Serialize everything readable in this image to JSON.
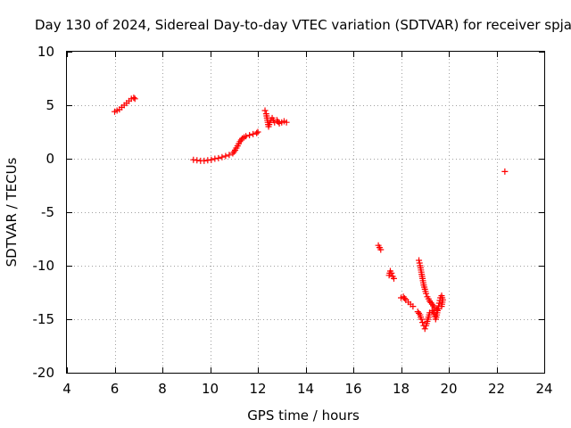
{
  "chart_data": {
    "type": "scatter",
    "title": "Day 130 of 2024, Sidereal Day-to-day VTEC variation (SDTVAR) for receiver spja",
    "xlabel": "GPS time / hours",
    "ylabel": "SDTVAR / TECUs",
    "xlim": [
      4,
      24
    ],
    "ylim": [
      -20,
      10
    ],
    "xticks": [
      4,
      6,
      8,
      10,
      12,
      14,
      16,
      18,
      20,
      22,
      24
    ],
    "yticks": [
      10,
      5,
      0,
      -5,
      -10,
      -15,
      -20
    ],
    "grid": true,
    "marker": "+",
    "color": "#ff0000",
    "series": [
      {
        "name": "SDTVAR",
        "segments": [
          [
            [
              6.0,
              4.4
            ],
            [
              6.1,
              4.5
            ],
            [
              6.2,
              4.6
            ],
            [
              6.3,
              4.8
            ],
            [
              6.4,
              5.0
            ],
            [
              6.5,
              5.2
            ],
            [
              6.6,
              5.4
            ],
            [
              6.7,
              5.6
            ],
            [
              6.8,
              5.7
            ],
            [
              6.85,
              5.6
            ]
          ],
          [
            [
              9.3,
              -0.1
            ],
            [
              9.45,
              -0.15
            ],
            [
              9.6,
              -0.2
            ],
            [
              9.75,
              -0.2
            ],
            [
              9.9,
              -0.15
            ],
            [
              10.05,
              -0.1
            ],
            [
              10.2,
              0.0
            ],
            [
              10.35,
              0.05
            ],
            [
              10.5,
              0.15
            ],
            [
              10.65,
              0.25
            ],
            [
              10.8,
              0.35
            ],
            [
              10.95,
              0.5
            ],
            [
              11.05,
              0.8
            ],
            [
              11.15,
              1.2
            ],
            [
              11.25,
              1.6
            ],
            [
              11.35,
              1.9
            ],
            [
              11.5,
              2.1
            ],
            [
              11.65,
              2.2
            ],
            [
              11.8,
              2.3
            ],
            [
              11.95,
              2.4
            ],
            [
              12.0,
              2.5
            ]
          ],
          [
            [
              12.3,
              4.5
            ],
            [
              12.35,
              4.2
            ],
            [
              12.4,
              3.6
            ],
            [
              12.45,
              3.0
            ],
            [
              12.5,
              3.4
            ],
            [
              12.6,
              3.8
            ],
            [
              12.7,
              3.4
            ],
            [
              12.8,
              3.6
            ],
            [
              12.9,
              3.3
            ],
            [
              13.0,
              3.4
            ],
            [
              13.1,
              3.5
            ],
            [
              13.2,
              3.4
            ]
          ],
          [
            [
              17.05,
              -8.1
            ],
            [
              17.1,
              -8.3
            ],
            [
              17.15,
              -8.5
            ]
          ],
          [
            [
              17.5,
              -10.9
            ],
            [
              17.55,
              -10.5
            ],
            [
              17.6,
              -10.7
            ],
            [
              17.65,
              -11.0
            ],
            [
              17.7,
              -11.2
            ]
          ],
          [
            [
              18.0,
              -13.0
            ],
            [
              18.1,
              -12.9
            ],
            [
              18.2,
              -13.2
            ],
            [
              18.3,
              -13.4
            ],
            [
              18.4,
              -13.6
            ],
            [
              18.5,
              -13.8
            ]
          ],
          [
            [
              18.75,
              -9.5
            ],
            [
              18.8,
              -10.0
            ],
            [
              18.85,
              -10.6
            ],
            [
              18.9,
              -11.2
            ],
            [
              18.95,
              -11.8
            ],
            [
              19.0,
              -12.2
            ],
            [
              19.05,
              -12.6
            ],
            [
              19.1,
              -12.9
            ],
            [
              19.2,
              -13.3
            ],
            [
              19.3,
              -13.6
            ],
            [
              19.4,
              -13.9
            ],
            [
              19.5,
              -14.1
            ]
          ],
          [
            [
              18.7,
              -14.3
            ],
            [
              18.8,
              -14.6
            ],
            [
              18.85,
              -15.0
            ],
            [
              18.9,
              -15.3
            ],
            [
              18.95,
              -15.6
            ],
            [
              19.0,
              -15.9
            ],
            [
              19.05,
              -15.6
            ],
            [
              19.1,
              -15.2
            ],
            [
              19.15,
              -14.8
            ],
            [
              19.2,
              -14.4
            ],
            [
              19.3,
              -14.2
            ],
            [
              19.4,
              -14.5
            ],
            [
              19.45,
              -15.0
            ],
            [
              19.5,
              -14.6
            ],
            [
              19.55,
              -14.0
            ],
            [
              19.6,
              -13.5
            ],
            [
              19.65,
              -13.0
            ],
            [
              19.7,
              -12.8
            ],
            [
              19.75,
              -13.2
            ],
            [
              19.7,
              -13.8
            ]
          ],
          [
            [
              22.35,
              -1.2
            ]
          ]
        ]
      }
    ]
  }
}
